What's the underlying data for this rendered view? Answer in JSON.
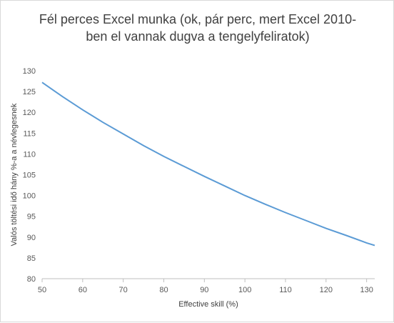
{
  "chart_data": {
    "type": "line",
    "title_lines": [
      "Fél perces Excel munka (ok, pár perc, mert Excel 2010-",
      "ben el vannak dugva a tengelyfeliratok)"
    ],
    "xlabel": "Effective skill (%)",
    "ylabel": "Valós töltési idő hány %-a a névlegesnek",
    "xlim": [
      50,
      132
    ],
    "ylim": [
      80,
      130
    ],
    "x_ticks": [
      50,
      60,
      70,
      80,
      90,
      100,
      110,
      120,
      130
    ],
    "y_ticks": [
      80,
      85,
      90,
      95,
      100,
      105,
      110,
      115,
      120,
      125,
      130
    ],
    "grid": false,
    "series": [
      {
        "color": "#5b9bd5",
        "x": [
          50,
          55,
          60,
          65,
          70,
          75,
          80,
          85,
          90,
          95,
          100,
          105,
          110,
          115,
          120,
          125,
          130,
          132
        ],
        "y": [
          127.2,
          123.8,
          120.6,
          117.6,
          114.8,
          112.0,
          109.4,
          107.0,
          104.6,
          102.3,
          100.0,
          97.9,
          95.9,
          94.0,
          92.1,
          90.4,
          88.6,
          88.0
        ]
      }
    ]
  }
}
